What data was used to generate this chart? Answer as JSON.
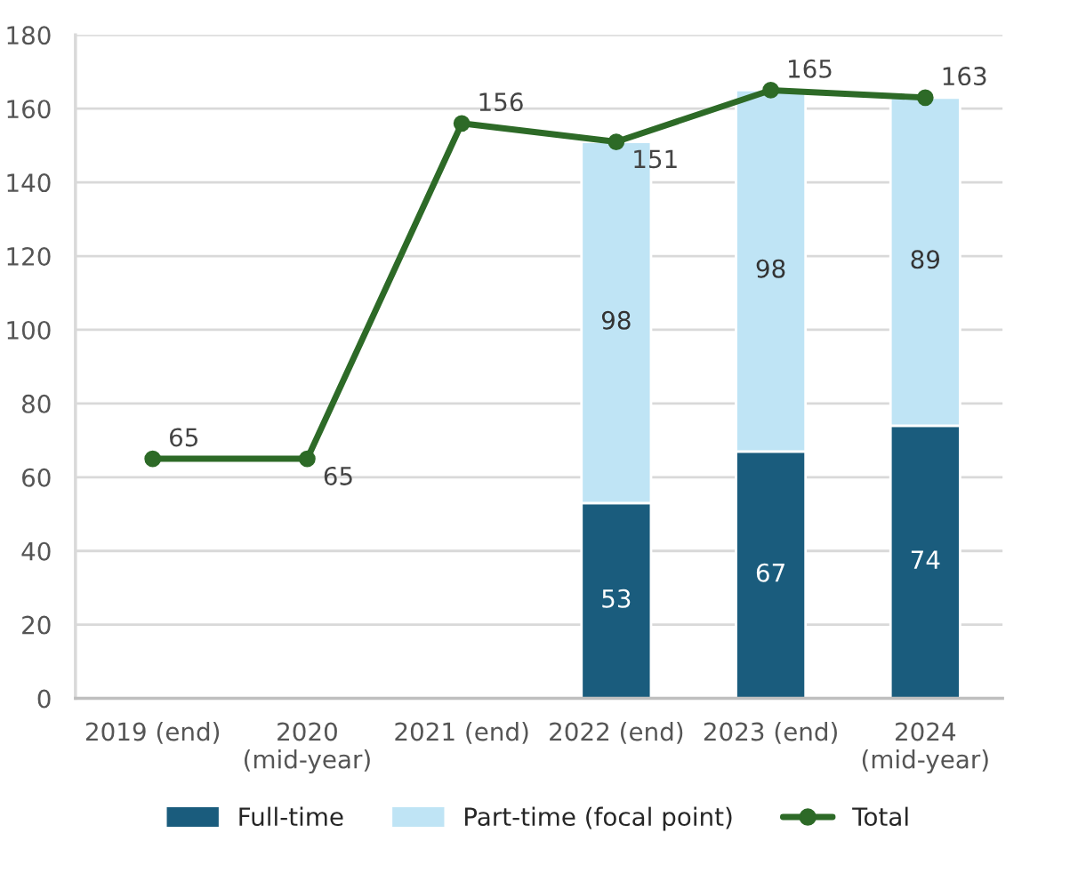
{
  "chart_data": {
    "type": "bar",
    "stacked": true,
    "categories": [
      "2019 (end)",
      "2020\n(mid-year)",
      "2021 (end)",
      "2022 (end)",
      "2023 (end)",
      "2024\n(mid-year)"
    ],
    "series": [
      {
        "name": "Full-time",
        "color": "#1a5c7d",
        "values": [
          null,
          null,
          null,
          53,
          67,
          74
        ]
      },
      {
        "name": "Part-time (focal point)",
        "color": "#bfe4f5",
        "values": [
          null,
          null,
          null,
          98,
          98,
          89
        ]
      },
      {
        "name": "Total",
        "type": "line",
        "color": "#2d6a27",
        "marker": "circle",
        "values": [
          65,
          65,
          156,
          151,
          165,
          163
        ]
      }
    ],
    "ylim": [
      0,
      180
    ],
    "yticks": [
      0,
      20,
      40,
      60,
      80,
      100,
      120,
      140,
      160,
      180
    ],
    "grid": "y",
    "legend": "bottom",
    "data_labels": true
  }
}
